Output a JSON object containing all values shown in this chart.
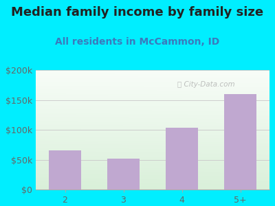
{
  "title": "Median family income by family size",
  "subtitle": "All residents in McCammon, ID",
  "categories": [
    "2",
    "3",
    "4",
    "5+"
  ],
  "values": [
    65000,
    52000,
    103000,
    160000
  ],
  "bar_color": "#c0a8d0",
  "ylim": [
    0,
    200000
  ],
  "yticks": [
    0,
    50000,
    100000,
    150000,
    200000
  ],
  "ytick_labels": [
    "$0",
    "$50k",
    "$100k",
    "$150k",
    "$200k"
  ],
  "title_fontsize": 13,
  "subtitle_fontsize": 10,
  "tick_label_fontsize": 9,
  "background_outer": "#00eeff",
  "watermark": "ⓘ City-Data.com",
  "grid_color": "#cccccc",
  "title_color": "#222222",
  "subtitle_color": "#3a7abd",
  "tick_color": "#666666"
}
